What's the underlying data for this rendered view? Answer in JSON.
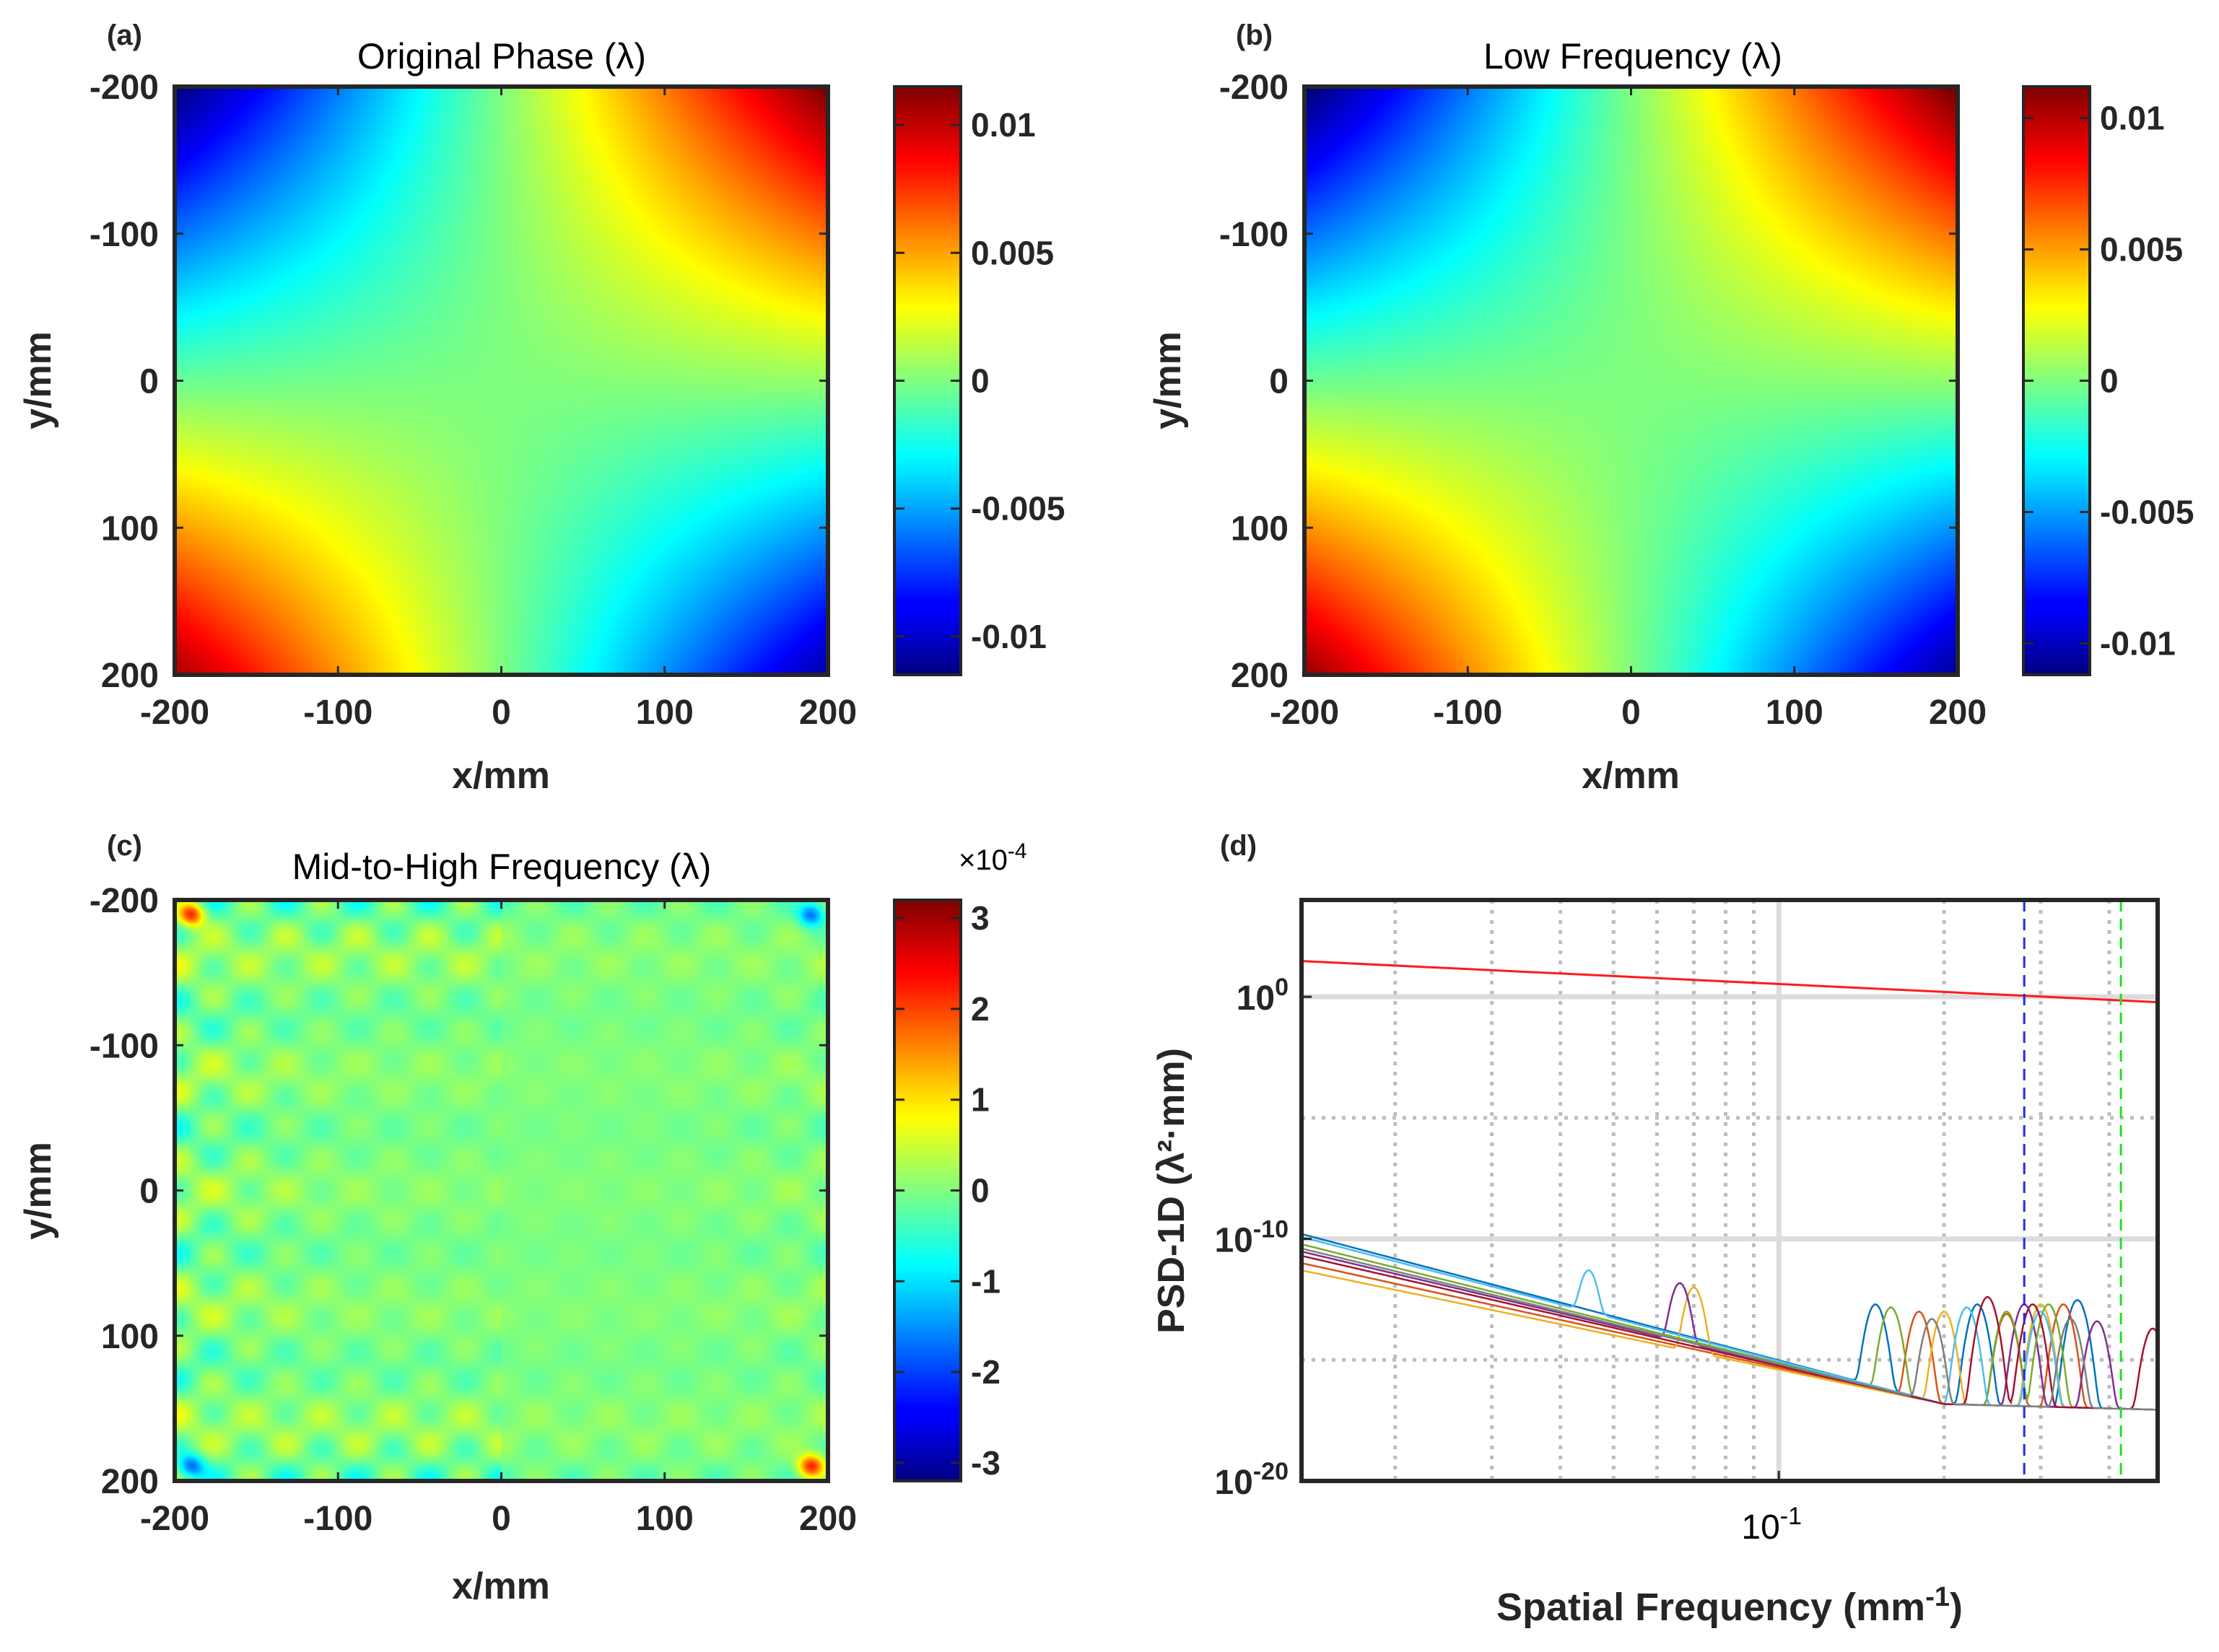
{
  "figure": {
    "panels": [
      "(a)",
      "(b)",
      "(c)",
      "(d)"
    ]
  },
  "chart_data": [
    {
      "panel_label": "(a)",
      "type": "heatmap",
      "title": "Original Phase (λ)",
      "xlabel": "x/mm",
      "ylabel": "y/mm",
      "xlim": [
        -200,
        200
      ],
      "ylim": [
        -200,
        200
      ],
      "xticks": [
        "-200",
        "-100",
        "0",
        "100",
        "200"
      ],
      "yticks": [
        "-200",
        "-100",
        "0",
        "100",
        "200"
      ],
      "colorbar": {
        "range": [
          -0.0115,
          0.0115
        ],
        "ticks": [
          "-0.01",
          "-0.005",
          "0",
          "0.005",
          "0.01"
        ],
        "tick_values": [
          -0.01,
          -0.005,
          0,
          0.005,
          0.01
        ],
        "exponent": ""
      },
      "colormap": "jet",
      "surface": "saddle: phase = 0.0112 × (x/200) × (−y/200) + 0.0005 × (x/200); max at top-right and bottom-left, min at top-left and bottom-right"
    },
    {
      "panel_label": "(b)",
      "type": "heatmap",
      "title": "Low Frequency (λ)",
      "xlabel": "x/mm",
      "ylabel": "y/mm",
      "xlim": [
        -200,
        200
      ],
      "ylim": [
        -200,
        200
      ],
      "xticks": [
        "-200",
        "-100",
        "0",
        "100",
        "200"
      ],
      "yticks": [
        "-200",
        "-100",
        "0",
        "100",
        "200"
      ],
      "colorbar": {
        "range": [
          -0.0112,
          0.0112
        ],
        "ticks": [
          "-0.01",
          "-0.005",
          "0",
          "0.005",
          "0.01"
        ],
        "tick_values": [
          -0.01,
          -0.005,
          0,
          0.005,
          0.01
        ],
        "exponent": ""
      },
      "colormap": "jet"
    },
    {
      "panel_label": "(c)",
      "type": "heatmap",
      "title": "Mid-to-High Frequency (λ)",
      "xlabel": "x/mm",
      "ylabel": "y/mm",
      "xlim": [
        -200,
        200
      ],
      "ylim": [
        -200,
        200
      ],
      "xticks": [
        "-200",
        "-100",
        "0",
        "100",
        "200"
      ],
      "yticks": [
        "-200",
        "-100",
        "0",
        "100",
        "200"
      ],
      "colorbar": {
        "range": [
          -3.2,
          3.2
        ],
        "ticks": [
          "-3",
          "-2",
          "-1",
          "0",
          "1",
          "2",
          "3"
        ],
        "tick_values": [
          -3,
          -2,
          -1,
          0,
          1,
          2,
          3
        ],
        "exponent": "×10",
        "exponent_power": "-4"
      },
      "colormap": "jet",
      "surface": "near-zero residual with faint periodic ripples stronger near edges; corner spots about ±2.5e-4"
    },
    {
      "panel_label": "(d)",
      "type": "line",
      "xscale": "log",
      "yscale": "log",
      "xlabel": "Spatial Frequency (mm",
      "xlabel_sup": "-1",
      "xlabel_end": ")",
      "ylabel": "PSD-1D (λ²·mm)",
      "xlim": [
        0.0135,
        0.49
      ],
      "ylim": [
        1e-20,
        10000.0
      ],
      "xticks": [
        {
          "value": 0.1,
          "label": "10",
          "sup": "-1"
        }
      ],
      "yticks": [
        {
          "value": 1.0,
          "label": "10",
          "sup": "0"
        },
        {
          "value": 1e-10,
          "label": "10",
          "sup": "-10"
        },
        {
          "value": 1e-20,
          "label": "10",
          "sup": "-20"
        }
      ],
      "vlines": [
        {
          "x": 0.28,
          "color": "#2a2ae0",
          "style": "dashed"
        },
        {
          "x": 0.42,
          "color": "#22dd22",
          "style": "dashed"
        }
      ],
      "reference_line": {
        "color": "#ff1a1a",
        "x": [
          0.0135,
          0.49
        ],
        "y": [
          30,
          0.6
        ]
      },
      "series": [
        {
          "color": "#0072bd",
          "y_start": 1.6e-10,
          "peaks": [
            [
              0.15,
              2e-13
            ],
            [
              0.23,
              2e-13
            ],
            [
              0.35,
              3e-13
            ]
          ]
        },
        {
          "color": "#d95319",
          "y_start": 1e-11,
          "peaks": [
            [
              0.18,
              1e-13
            ],
            [
              0.26,
              8e-14
            ],
            [
              0.33,
              2e-13
            ]
          ]
        },
        {
          "color": "#edb120",
          "y_start": 5e-12,
          "peaks": [
            [
              0.07,
              1e-12
            ],
            [
              0.2,
              1e-13
            ],
            [
              0.3,
              2e-13
            ]
          ]
        },
        {
          "color": "#7e2f8e",
          "y_start": 3e-11,
          "peaks": [
            [
              0.066,
              1.5e-12
            ],
            [
              0.28,
              2e-13
            ],
            [
              0.38,
              4e-14
            ]
          ]
        },
        {
          "color": "#77ac30",
          "y_start": 6e-11,
          "peaks": [
            [
              0.16,
              1.5e-13
            ],
            [
              0.26,
              1e-13
            ],
            [
              0.31,
              2e-13
            ]
          ]
        },
        {
          "color": "#4dbeee",
          "y_start": 1.2e-10,
          "peaks": [
            [
              0.045,
              5e-12
            ],
            [
              0.22,
              1.5e-13
            ],
            [
              0.3,
              1e-13
            ]
          ]
        },
        {
          "color": "#a2142f",
          "y_start": 2e-11,
          "peaks": [
            [
              0.24,
              4e-13
            ],
            [
              0.29,
              2e-13
            ],
            [
              0.48,
              2e-14
            ]
          ]
        },
        {
          "color": "#7f7f7f",
          "y_start": 4e-11,
          "peaks": [
            [
              0.19,
              5e-14
            ],
            [
              0.34,
              5e-14
            ]
          ]
        }
      ],
      "floor": {
        "x_knee": 0.2,
        "y": 1.5e-17
      }
    }
  ]
}
